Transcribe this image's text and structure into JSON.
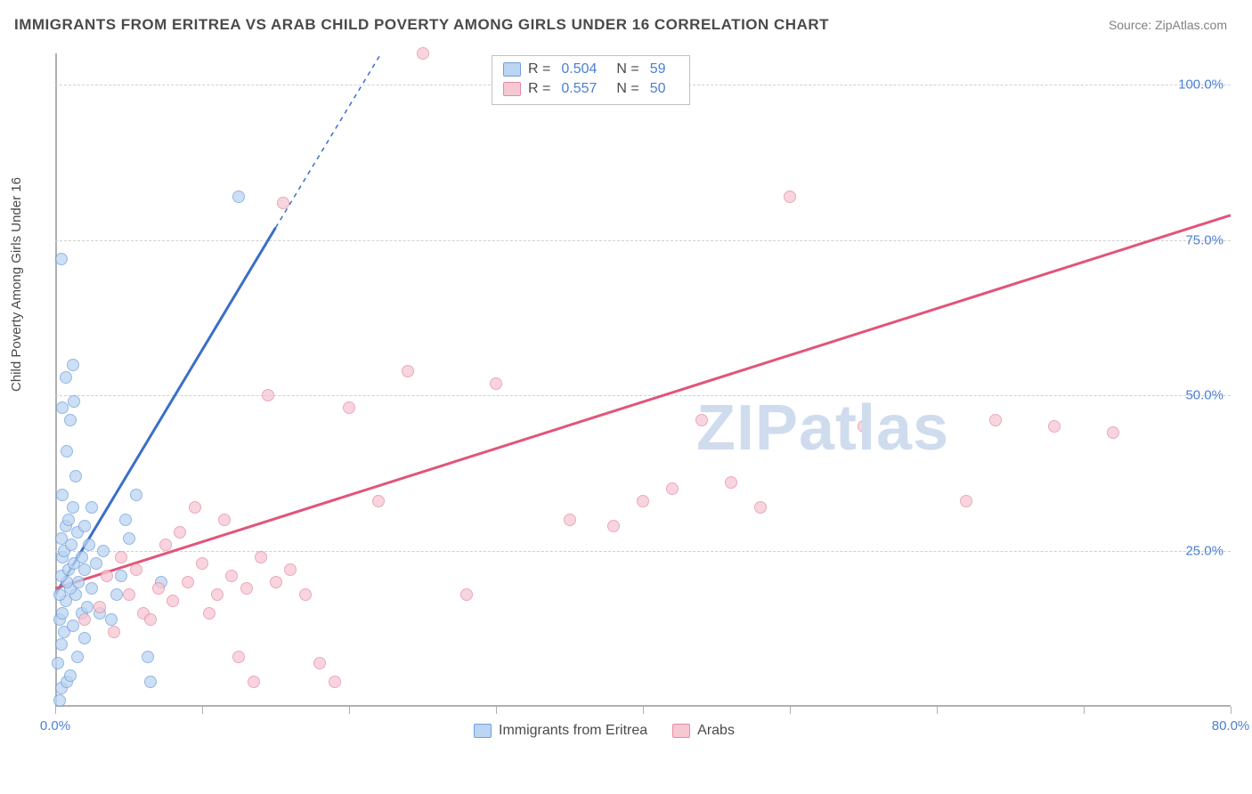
{
  "title": "IMMIGRANTS FROM ERITREA VS ARAB CHILD POVERTY AMONG GIRLS UNDER 16 CORRELATION CHART",
  "source_label": "Source:",
  "source_value": "ZipAtlas.com",
  "y_axis_label": "Child Poverty Among Girls Under 16",
  "watermark": "ZIPatlas",
  "chart": {
    "type": "scatter",
    "xlim": [
      0,
      80
    ],
    "ylim": [
      0,
      105
    ],
    "x_ticks": [
      0,
      10,
      20,
      30,
      40,
      50,
      60,
      70,
      80
    ],
    "x_tick_labels": {
      "0": "0.0%",
      "80": "80.0%"
    },
    "y_gridlines": [
      25,
      50,
      75,
      100
    ],
    "y_tick_labels": {
      "25": "25.0%",
      "50": "50.0%",
      "75": "75.0%",
      "100": "100.0%"
    },
    "background_color": "#ffffff",
    "grid_color": "#d0d0d0",
    "axis_color": "#b0b0b0",
    "label_color": "#4a7fd6",
    "marker_size": 14,
    "series": [
      {
        "name": "Immigrants from Eritrea",
        "color_fill": "#bcd5f2",
        "color_stroke": "#6fa0dc",
        "R": "0.504",
        "N": "59",
        "trend": {
          "x1": 0,
          "y1": 18,
          "x2": 15,
          "y2": 77,
          "dash_x2": 25,
          "dash_y2": 116,
          "color": "#3a6fc8",
          "width": 3
        },
        "points": [
          [
            0.3,
            1
          ],
          [
            0.4,
            3
          ],
          [
            0.8,
            4
          ],
          [
            1.0,
            5
          ],
          [
            0.2,
            7
          ],
          [
            1.5,
            8
          ],
          [
            0.4,
            10
          ],
          [
            2.0,
            11
          ],
          [
            0.6,
            12
          ],
          [
            1.2,
            13
          ],
          [
            0.3,
            14
          ],
          [
            1.8,
            15
          ],
          [
            0.5,
            15
          ],
          [
            2.2,
            16
          ],
          [
            0.7,
            17
          ],
          [
            1.4,
            18
          ],
          [
            0.3,
            18
          ],
          [
            1.0,
            19
          ],
          [
            2.5,
            19
          ],
          [
            0.8,
            20
          ],
          [
            1.6,
            20
          ],
          [
            0.4,
            21
          ],
          [
            2.0,
            22
          ],
          [
            0.9,
            22
          ],
          [
            1.3,
            23
          ],
          [
            0.5,
            24
          ],
          [
            1.8,
            24
          ],
          [
            0.6,
            25
          ],
          [
            2.3,
            26
          ],
          [
            1.1,
            26
          ],
          [
            0.4,
            27
          ],
          [
            1.5,
            28
          ],
          [
            0.7,
            29
          ],
          [
            2.0,
            29
          ],
          [
            0.9,
            30
          ],
          [
            1.2,
            32
          ],
          [
            2.5,
            32
          ],
          [
            0.5,
            34
          ],
          [
            1.4,
            37
          ],
          [
            0.8,
            41
          ],
          [
            1.0,
            46
          ],
          [
            1.3,
            49
          ],
          [
            0.5,
            48
          ],
          [
            0.7,
            53
          ],
          [
            1.2,
            55
          ],
          [
            0.4,
            72
          ],
          [
            6.5,
            4
          ],
          [
            6.3,
            8
          ],
          [
            7.2,
            20
          ],
          [
            3.0,
            15
          ],
          [
            4.5,
            21
          ],
          [
            3.8,
            14
          ],
          [
            5.0,
            27
          ],
          [
            4.2,
            18
          ],
          [
            5.5,
            34
          ],
          [
            12.5,
            82
          ],
          [
            3.3,
            25
          ],
          [
            4.8,
            30
          ],
          [
            2.8,
            23
          ]
        ]
      },
      {
        "name": "Arabs",
        "color_fill": "#f6c8d4",
        "color_stroke": "#e88aa3",
        "R": "0.557",
        "N": "50",
        "trend": {
          "x1": 0,
          "y1": 19,
          "x2": 80,
          "y2": 79,
          "color": "#e15579",
          "width": 3
        },
        "points": [
          [
            2,
            14
          ],
          [
            3,
            16
          ],
          [
            4,
            12
          ],
          [
            5,
            18
          ],
          [
            3.5,
            21
          ],
          [
            6,
            15
          ],
          [
            7,
            19
          ],
          [
            5.5,
            22
          ],
          [
            8,
            17
          ],
          [
            4.5,
            24
          ],
          [
            9,
            20
          ],
          [
            6.5,
            14
          ],
          [
            10,
            23
          ],
          [
            7.5,
            26
          ],
          [
            11,
            18
          ],
          [
            8.5,
            28
          ],
          [
            12,
            21
          ],
          [
            9.5,
            32
          ],
          [
            13,
            19
          ],
          [
            10.5,
            15
          ],
          [
            14,
            24
          ],
          [
            11.5,
            30
          ],
          [
            15,
            20
          ],
          [
            12.5,
            8
          ],
          [
            16,
            22
          ],
          [
            13.5,
            4
          ],
          [
            17,
            18
          ],
          [
            14.5,
            50
          ],
          [
            18,
            7
          ],
          [
            15.5,
            81
          ],
          [
            25,
            105
          ],
          [
            19,
            4
          ],
          [
            20,
            48
          ],
          [
            22,
            33
          ],
          [
            24,
            54
          ],
          [
            28,
            18
          ],
          [
            30,
            52
          ],
          [
            35,
            30
          ],
          [
            38,
            29
          ],
          [
            40,
            33
          ],
          [
            42,
            35
          ],
          [
            44,
            46
          ],
          [
            46,
            36
          ],
          [
            48,
            32
          ],
          [
            50,
            82
          ],
          [
            55,
            45
          ],
          [
            62,
            33
          ],
          [
            64,
            46
          ],
          [
            68,
            45
          ],
          [
            72,
            44
          ]
        ]
      }
    ]
  },
  "legend": {
    "r_label": "R =",
    "n_label": "N ="
  },
  "bottom_legend": [
    {
      "swatch_fill": "#bcd5f2",
      "swatch_stroke": "#6fa0dc",
      "label": "Immigrants from Eritrea"
    },
    {
      "swatch_fill": "#f6c8d4",
      "swatch_stroke": "#e88aa3",
      "label": "Arabs"
    }
  ]
}
